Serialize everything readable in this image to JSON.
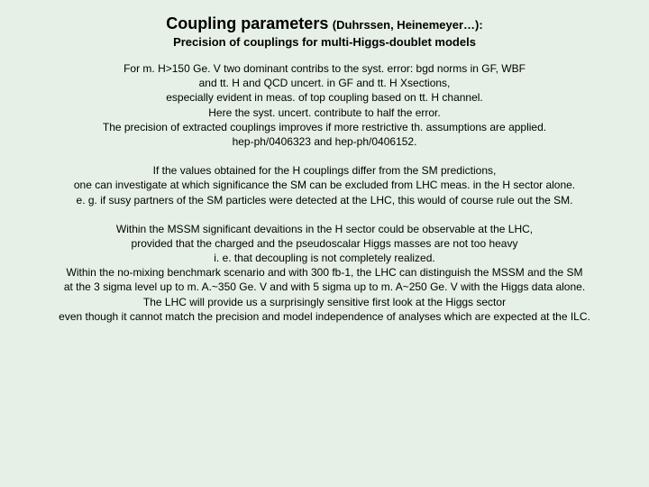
{
  "title_main": "Coupling parameters",
  "title_sub": "(Duhrssen, Heinemeyer…):",
  "subtitle": "Precision of couplings for multi-Higgs-doublet models",
  "para1": {
    "l1": "For m. H>150 Ge. V two dominant contribs to the syst. error: bgd norms in GF, WBF",
    "l2": "and tt. H and QCD uncert. in GF and tt. H Xsections,",
    "l3": "especially evident in meas. of top coupling based on tt. H channel.",
    "l4": "Here the syst. uncert. contribute to half the error.",
    "l5": "The precision of extracted couplings improves if more restrictive th. assumptions are applied.",
    "l6": "hep-ph/0406323 and hep-ph/0406152."
  },
  "para2": {
    "l1": "If the values obtained for the H couplings differ from the SM predictions,",
    "l2": "one can investigate at which significance the SM can be excluded from LHC meas. in the H sector alone.",
    "l3": "e. g. if susy partners of the SM particles were detected at the LHC, this would of course rule out the SM."
  },
  "para3": {
    "l1": "Within the MSSM significant devaitions in the H sector could be observable at the LHC,",
    "l2": "provided that the charged and the pseudoscalar Higgs masses are not too heavy",
    "l3": "i. e. that decoupling is not completely realized.",
    "l4": "Within the no-mixing benchmark scenario and with 300 fb-1, the LHC can distinguish the MSSM and the SM",
    "l5": "at the 3 sigma level up to m. A.~350 Ge. V and with 5 sigma up to m. A~250 Ge. V with the Higgs data alone.",
    "l6": "The LHC will provide us a surprisingly sensitive first look at the Higgs sector",
    "l7": "even though it cannot match the precision and model independence of analyses which are expected at the ILC."
  },
  "colors": {
    "background": "#e6f0e6",
    "text": "#000000"
  },
  "fonts": {
    "family": "Arial",
    "title_main_pt": 18,
    "title_sub_pt": 13,
    "subtitle_pt": 13,
    "body_pt": 12
  }
}
